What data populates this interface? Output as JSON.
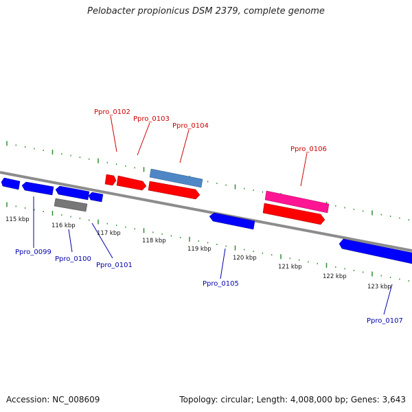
{
  "title": "Pelobacter propionicus DSM 2379, complete genome",
  "footer": {
    "accession": "Accession: NC_008609",
    "summary": "Topology: circular; Length: 4,008,000 bp; Genes: 3,643"
  },
  "colors": {
    "backbone": "#8c8c8c",
    "tick": "#2e8b2e",
    "label_red": "#cc0000",
    "label_blue": "#0000aa",
    "gene_red": "#ff0000",
    "gene_blue": "#0000ff",
    "gene_steelblue": "#4f86c6",
    "gene_magenta": "#ff1493",
    "gene_gray": "#777777"
  },
  "axis_labels": [
    "115 kbp",
    "116 kbp",
    "117 kbp",
    "118 kbp",
    "119 kbp",
    "120 kbp",
    "121 kbp",
    "122 kbp",
    "123 kbp"
  ],
  "gene_labels": [
    {
      "name": "Ppro_0099",
      "strand": "minus"
    },
    {
      "name": "Ppro_0100",
      "strand": "minus"
    },
    {
      "name": "Ppro_0101",
      "strand": "minus"
    },
    {
      "name": "Ppro_0102",
      "strand": "plus"
    },
    {
      "name": "Ppro_0103",
      "strand": "plus"
    },
    {
      "name": "Ppro_0104",
      "strand": "plus"
    },
    {
      "name": "Ppro_0105",
      "strand": "minus"
    },
    {
      "name": "Ppro_0106",
      "strand": "plus"
    },
    {
      "name": "Ppro_0107",
      "strand": "minus"
    }
  ]
}
